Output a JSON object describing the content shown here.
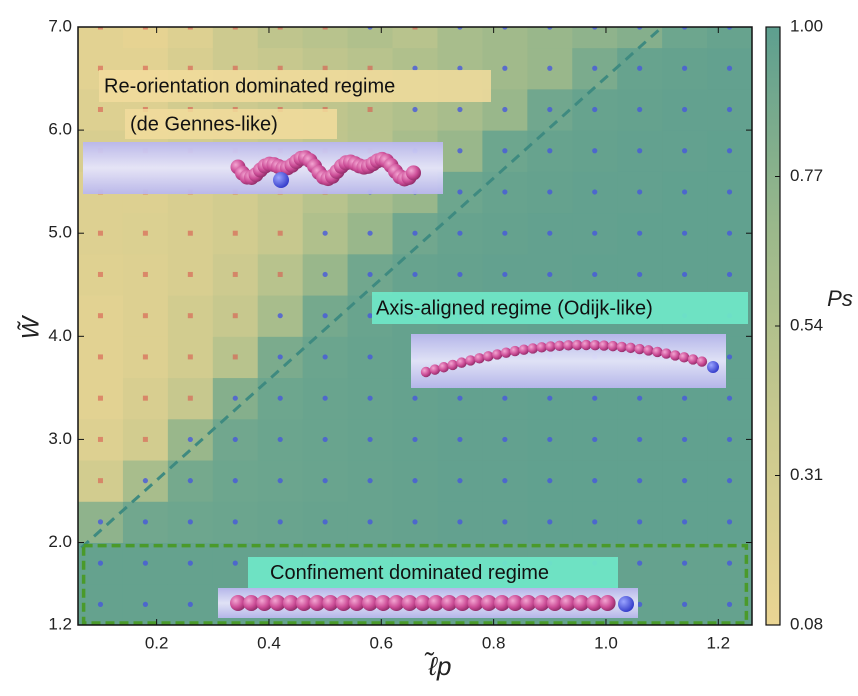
{
  "chart_data": {
    "type": "heatmap",
    "xlabel": "ℓ̃p",
    "ylabel": "W̃",
    "colorbar_label": "Ps",
    "x": [
      0.1,
      0.18,
      0.26,
      0.34,
      0.42,
      0.5,
      0.58,
      0.66,
      0.74,
      0.82,
      0.9,
      0.98,
      1.06,
      1.14,
      1.22
    ],
    "y": [
      1.4,
      1.8,
      2.2,
      2.6,
      3.0,
      3.4,
      3.8,
      4.2,
      4.6,
      5.0,
      5.4,
      5.8,
      6.2,
      6.6,
      7.0
    ],
    "z": [
      [
        0.96,
        0.96,
        0.96,
        0.96,
        0.96,
        0.96,
        0.96,
        0.96,
        0.96,
        0.96,
        0.96,
        0.96,
        0.96,
        0.96,
        0.96
      ],
      [
        0.96,
        0.96,
        0.96,
        0.96,
        0.96,
        0.96,
        0.96,
        0.96,
        0.96,
        0.96,
        0.96,
        0.96,
        0.96,
        0.96,
        0.96
      ],
      [
        0.75,
        0.9,
        0.92,
        0.93,
        0.94,
        0.95,
        0.95,
        0.96,
        0.97,
        0.97,
        0.98,
        0.98,
        0.98,
        0.98,
        0.98
      ],
      [
        0.3,
        0.6,
        0.88,
        0.92,
        0.93,
        0.94,
        0.95,
        0.96,
        0.97,
        0.97,
        0.98,
        0.98,
        0.98,
        0.98,
        0.98
      ],
      [
        0.2,
        0.3,
        0.7,
        0.9,
        0.93,
        0.94,
        0.95,
        0.96,
        0.97,
        0.97,
        0.98,
        0.98,
        0.98,
        0.98,
        0.98
      ],
      [
        0.15,
        0.25,
        0.4,
        0.8,
        0.92,
        0.94,
        0.95,
        0.96,
        0.97,
        0.97,
        0.98,
        0.98,
        0.98,
        0.98,
        0.98
      ],
      [
        0.15,
        0.2,
        0.3,
        0.5,
        0.85,
        0.93,
        0.95,
        0.96,
        0.97,
        0.97,
        0.98,
        0.98,
        0.98,
        0.98,
        0.98
      ],
      [
        0.15,
        0.2,
        0.3,
        0.4,
        0.6,
        0.88,
        0.94,
        0.96,
        0.97,
        0.97,
        0.98,
        0.98,
        0.98,
        0.98,
        0.98
      ],
      [
        0.18,
        0.2,
        0.25,
        0.35,
        0.5,
        0.7,
        0.9,
        0.95,
        0.96,
        0.97,
        0.97,
        0.98,
        0.98,
        0.98,
        0.98
      ],
      [
        0.2,
        0.22,
        0.25,
        0.3,
        0.4,
        0.55,
        0.7,
        0.9,
        0.95,
        0.96,
        0.97,
        0.97,
        0.98,
        0.98,
        0.98
      ],
      [
        0.2,
        0.2,
        0.25,
        0.3,
        0.4,
        0.5,
        0.6,
        0.7,
        0.92,
        0.95,
        0.96,
        0.97,
        0.97,
        0.98,
        0.98
      ],
      [
        0.25,
        0.25,
        0.3,
        0.35,
        0.4,
        0.45,
        0.5,
        0.6,
        0.7,
        0.92,
        0.95,
        0.96,
        0.97,
        0.97,
        0.98
      ],
      [
        0.2,
        0.2,
        0.3,
        0.35,
        0.4,
        0.45,
        0.5,
        0.55,
        0.6,
        0.7,
        0.9,
        0.95,
        0.96,
        0.97,
        0.97
      ],
      [
        0.15,
        0.15,
        0.25,
        0.35,
        0.4,
        0.45,
        0.5,
        0.55,
        0.6,
        0.65,
        0.7,
        0.85,
        0.95,
        0.96,
        0.97
      ],
      [
        0.15,
        0.12,
        0.2,
        0.35,
        0.45,
        0.5,
        0.55,
        0.5,
        0.6,
        0.65,
        0.7,
        0.75,
        0.8,
        0.92,
        0.95
      ]
    ],
    "colormap": [
      "#ead593",
      "#c9c98e",
      "#9ab88b",
      "#5d9f8f"
    ],
    "xlim": [
      0.06,
      1.26
    ],
    "ylim": [
      1.2,
      7.0
    ],
    "clim": [
      0.08,
      1
    ],
    "xticks": [
      0.2,
      0.4,
      0.6,
      0.8,
      {
        "value": 1,
        "label": "1.0"
      },
      1.2
    ],
    "yticks": [
      1.2,
      {
        "value": 2,
        "label": "2.0"
      },
      {
        "value": 3,
        "label": "3.0"
      },
      {
        "value": 4,
        "label": "4.0"
      },
      {
        "value": 5,
        "label": "5.0"
      },
      {
        "value": 6,
        "label": "6.0"
      },
      {
        "value": 7,
        "label": "7.0"
      }
    ],
    "cticks": [
      0.08,
      0.31,
      0.54,
      0.77,
      {
        "value": 1,
        "label": "1.00"
      }
    ],
    "guide_line": {
      "x": [
        0.066,
        1.1
      ],
      "y": [
        1.95,
        7.0
      ],
      "color": "#3e8a80"
    },
    "confinement_box": {
      "x": [
        0.07,
        1.25
      ],
      "y": [
        1.22,
        1.97
      ],
      "color": "#4a9a2a"
    },
    "annotations": [
      {
        "text": "Re-orientation dominated regime"
      },
      {
        "text": "(de Gennes-like)"
      },
      {
        "text": "Axis-aligned  regime (Odijk-like)"
      },
      {
        "text": "Confinement dominated regime"
      }
    ]
  }
}
